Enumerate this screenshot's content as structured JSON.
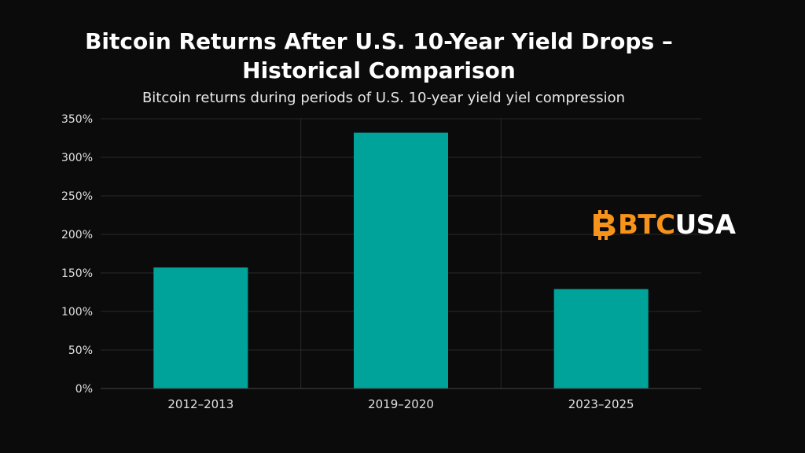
{
  "header": {
    "title_line1": "Bitcoin Returns After U.S. 10-Year Yield Drops –",
    "title_line2": "Historical Comparison",
    "subtitle": "Bitcoin returns during periods of U.S. 10-year yield yiel compression"
  },
  "logo": {
    "icon": "bitcoin-b-icon",
    "btc": "BTC",
    "usa": "USA",
    "btc_color": "#f7931a",
    "usa_color": "#ffffff"
  },
  "colors": {
    "bar": "#00a39a",
    "background": "#0b0b0b",
    "grid": "#2a2a2a",
    "text": "#e0e0e0"
  },
  "chart_data": {
    "type": "bar",
    "title": "Bitcoin Returns After U.S. 10-Year Yield Drops – Historical Comparison",
    "subtitle": "Bitcoin returns during periods of U.S. 10-year yield yiel compression",
    "categories": [
      "2012–2013",
      "2019–2020",
      "2023–2025"
    ],
    "values": [
      157,
      332,
      129
    ],
    "ylim": [
      0,
      350
    ],
    "yticks": [
      0,
      50,
      100,
      150,
      200,
      250,
      300,
      350
    ],
    "ytick_labels": [
      "0%",
      "50%",
      "100%",
      "150%",
      "200%",
      "250%",
      "300%",
      "350%"
    ],
    "xlabel": "",
    "ylabel": "",
    "grid": true,
    "legend": "none"
  }
}
